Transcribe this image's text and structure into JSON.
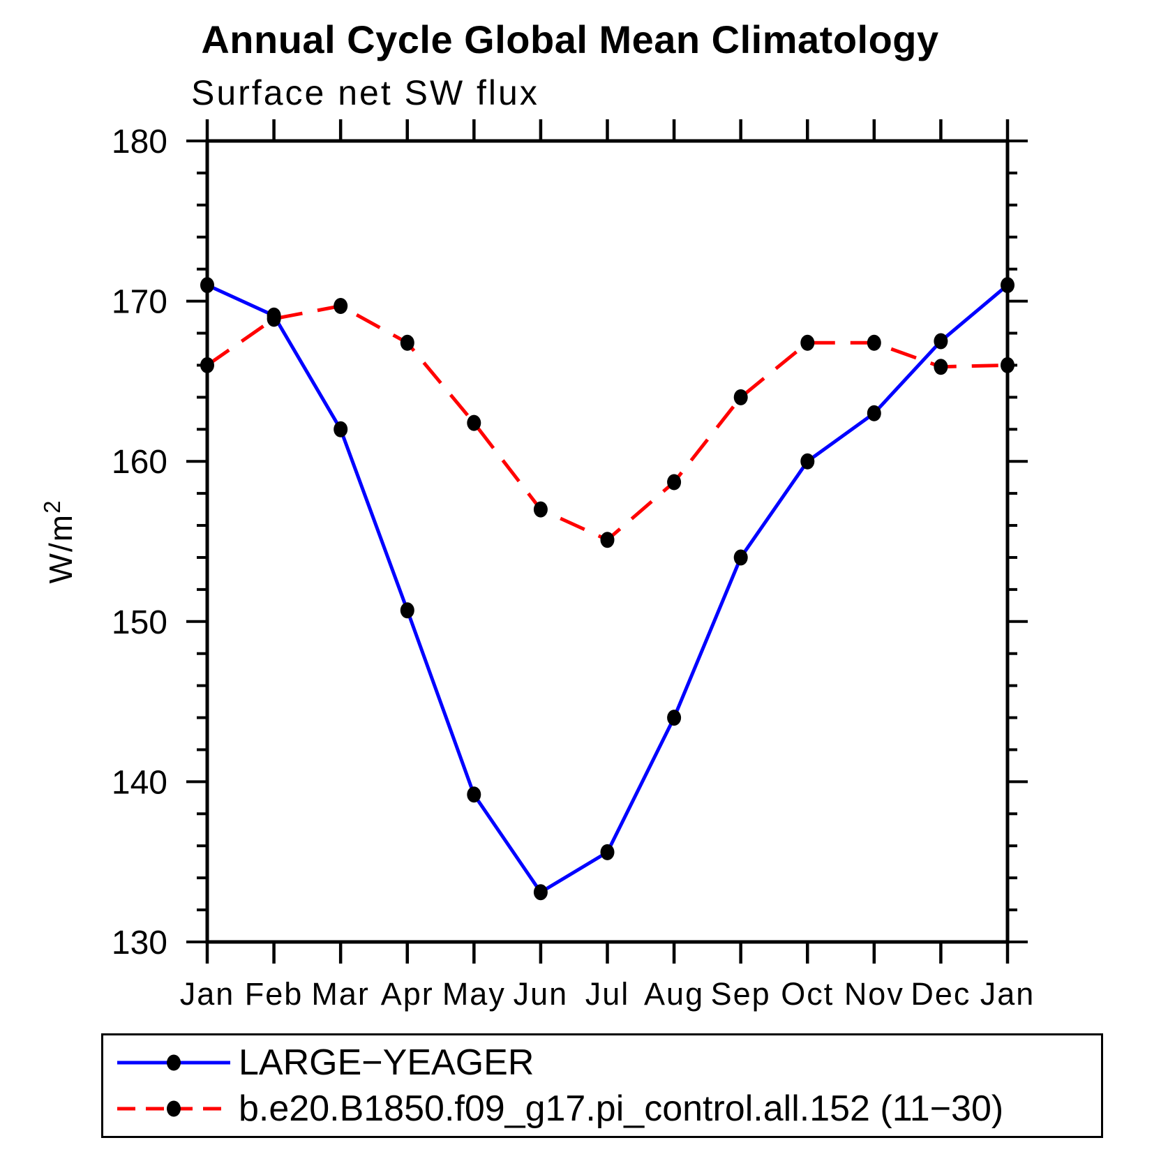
{
  "title": "Annual Cycle Global Mean Climatology",
  "subtitle": "Surface net SW flux",
  "y_axis": {
    "label_base": "W/m",
    "label_exponent": "2"
  },
  "chart_data": {
    "type": "line",
    "title": "Annual Cycle Global Mean Climatology",
    "subtitle": "Surface net SW flux",
    "xlabel": "",
    "ylabel": "W/m^2",
    "categories": [
      "Jan",
      "Feb",
      "Mar",
      "Apr",
      "May",
      "Jun",
      "Jul",
      "Aug",
      "Sep",
      "Oct",
      "Nov",
      "Dec",
      "Jan"
    ],
    "ylim": [
      130,
      180
    ],
    "ytick_major": [
      130,
      140,
      150,
      160,
      170,
      180
    ],
    "ytick_minor_step": 2,
    "grid": false,
    "legend_position": "bottom",
    "marker_color": "#000000",
    "series": [
      {
        "name": "LARGE−YEAGER",
        "color": "#0000ff",
        "line_style": "solid",
        "marker": "filled-circle",
        "marker_color": "#000000",
        "values": [
          171.0,
          169.1,
          162.0,
          150.7,
          139.2,
          133.1,
          135.6,
          144.0,
          154.0,
          160.0,
          163.0,
          167.5,
          171.0
        ]
      },
      {
        "name": "b.e20.B1850.f09_g17.pi_control.all.152 (11−30)",
        "color": "#ff0000",
        "line_style": "dashed",
        "marker": "filled-circle",
        "marker_color": "#000000",
        "values": [
          166.0,
          168.9,
          169.7,
          167.4,
          162.4,
          157.0,
          155.1,
          158.7,
          164.0,
          167.4,
          167.4,
          165.9,
          166.0
        ]
      }
    ]
  }
}
